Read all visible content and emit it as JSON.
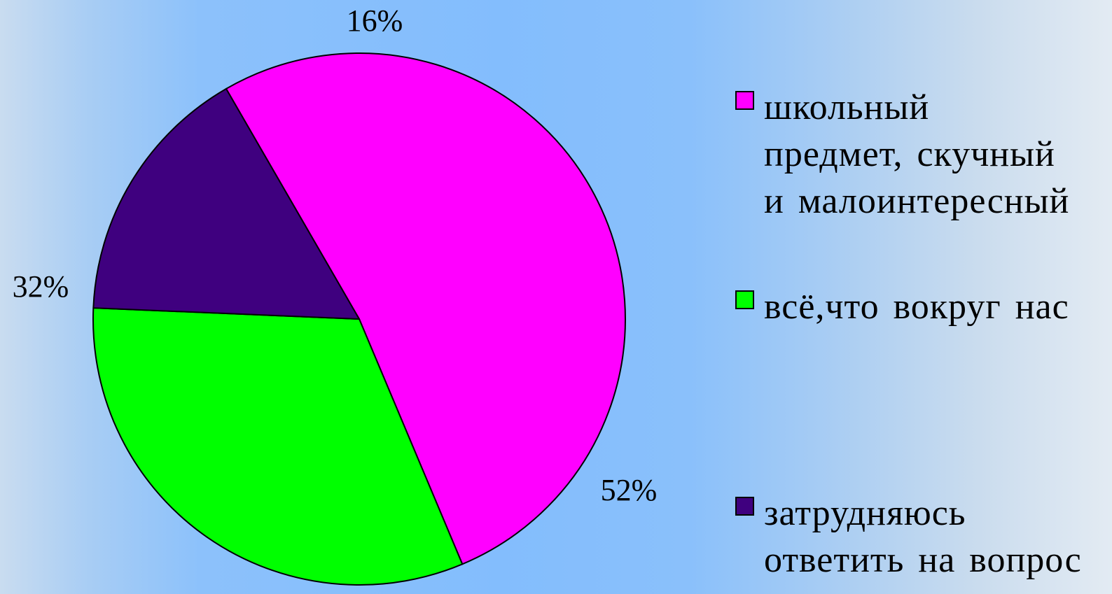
{
  "chart_data": {
    "type": "pie",
    "title": "",
    "slices": [
      {
        "label": "школьный предмет, скучный и малоинтересный",
        "value": 52,
        "display": "52%",
        "color": "#ff00ff"
      },
      {
        "label": "всё,что вокруг нас",
        "value": 32,
        "display": "32%",
        "color": "#00ff00"
      },
      {
        "label": "затрудняюсь ответить на вопрос",
        "value": 16,
        "display": "16%",
        "color": "#3f007f"
      }
    ],
    "legend_placement": "right"
  },
  "legend": {
    "items": [
      {
        "text": "школьный\nпредмет, скучный\nи малоинтересный",
        "color": "#ff00ff"
      },
      {
        "text": "всё,что вокруг нас",
        "color": "#00ff00"
      },
      {
        "text": "затрудняюсь\nответить на вопрос",
        "color": "#3f007f"
      }
    ]
  }
}
